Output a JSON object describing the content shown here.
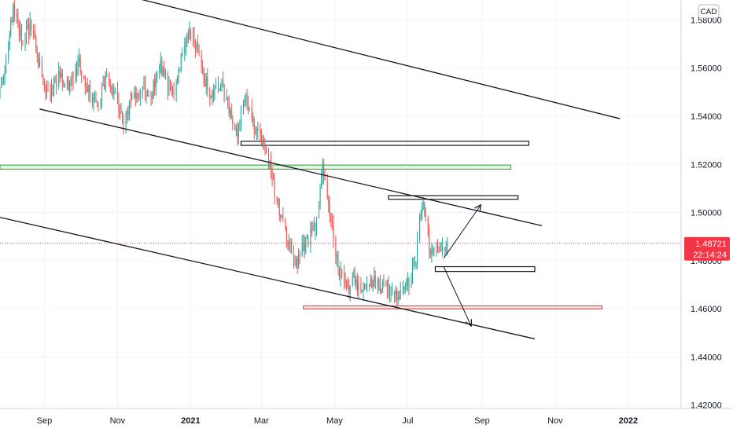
{
  "chart_data": {
    "type": "candlestick",
    "currency_label": "CAD",
    "y_ticks": [
      1.42,
      1.44,
      1.46,
      1.48,
      1.5,
      1.52,
      1.54,
      1.56,
      1.58
    ],
    "y_tick_labels": [
      "1.42000",
      "1.44000",
      "1.46000",
      "1.48000",
      "1.50000",
      "1.52000",
      "1.54000",
      "1.56000",
      "1.58000"
    ],
    "ylim": [
      1.4186,
      1.5883
    ],
    "xlim": [
      "2020-07-26",
      "2022-02-14"
    ],
    "x_ticks": [
      {
        "label": "Sep",
        "date": "2020-09-01",
        "bold": false
      },
      {
        "label": "Nov",
        "date": "2020-11-01",
        "bold": false
      },
      {
        "label": "2021",
        "date": "2021-01-01",
        "bold": true
      },
      {
        "label": "Mar",
        "date": "2021-03-01",
        "bold": false
      },
      {
        "label": "May",
        "date": "2021-05-01",
        "bold": false
      },
      {
        "label": "Jul",
        "date": "2021-07-01",
        "bold": false
      },
      {
        "label": "Sep",
        "date": "2021-09-01",
        "bold": false
      },
      {
        "label": "Nov",
        "date": "2021-11-01",
        "bold": false
      },
      {
        "label": "2022",
        "date": "2022-01-01",
        "bold": true
      }
    ],
    "current_price": 1.48721,
    "current_price_label": "1.48721",
    "countdown_label": "22:14:24",
    "price_path": [
      [
        "2020-07-26",
        1.548
      ],
      [
        "2020-08-01",
        1.562
      ],
      [
        "2020-08-07",
        1.586
      ],
      [
        "2020-08-14",
        1.572
      ],
      [
        "2020-08-22",
        1.578
      ],
      [
        "2020-08-30",
        1.558
      ],
      [
        "2020-09-06",
        1.548
      ],
      [
        "2020-09-14",
        1.558
      ],
      [
        "2020-09-22",
        1.552
      ],
      [
        "2020-10-01",
        1.562
      ],
      [
        "2020-10-08",
        1.552
      ],
      [
        "2020-10-16",
        1.545
      ],
      [
        "2020-10-24",
        1.555
      ],
      [
        "2020-11-01",
        1.548
      ],
      [
        "2020-11-07",
        1.535
      ],
      [
        "2020-11-14",
        1.548
      ],
      [
        "2020-11-22",
        1.552
      ],
      [
        "2020-11-30",
        1.548
      ],
      [
        "2020-12-07",
        1.562
      ],
      [
        "2020-12-14",
        1.552
      ],
      [
        "2020-12-20",
        1.552
      ],
      [
        "2020-12-27",
        1.568
      ],
      [
        "2021-01-03",
        1.575
      ],
      [
        "2021-01-08",
        1.565
      ],
      [
        "2021-01-14",
        1.555
      ],
      [
        "2021-01-20",
        1.548
      ],
      [
        "2021-01-27",
        1.555
      ],
      [
        "2021-02-03",
        1.542
      ],
      [
        "2021-02-09",
        1.532
      ],
      [
        "2021-02-16",
        1.548
      ],
      [
        "2021-02-23",
        1.538
      ],
      [
        "2021-03-01",
        1.532
      ],
      [
        "2021-03-06",
        1.528
      ],
      [
        "2021-03-10",
        1.518
      ],
      [
        "2021-03-14",
        1.505
      ],
      [
        "2021-03-19",
        1.498
      ],
      [
        "2021-03-25",
        1.485
      ],
      [
        "2021-03-31",
        1.478
      ],
      [
        "2021-04-06",
        1.485
      ],
      [
        "2021-04-12",
        1.49
      ],
      [
        "2021-04-18",
        1.498
      ],
      [
        "2021-04-22",
        1.518
      ],
      [
        "2021-04-27",
        1.502
      ],
      [
        "2021-05-01",
        1.49
      ],
      [
        "2021-05-06",
        1.475
      ],
      [
        "2021-05-12",
        1.468
      ],
      [
        "2021-05-18",
        1.472
      ],
      [
        "2021-05-25",
        1.468
      ],
      [
        "2021-06-01",
        1.472
      ],
      [
        "2021-06-08",
        1.47
      ],
      [
        "2021-06-15",
        1.468
      ],
      [
        "2021-06-22",
        1.465
      ],
      [
        "2021-06-28",
        1.468
      ],
      [
        "2021-07-04",
        1.472
      ],
      [
        "2021-07-09",
        1.482
      ],
      [
        "2021-07-14",
        1.505
      ],
      [
        "2021-07-17",
        1.498
      ],
      [
        "2021-07-21",
        1.48
      ],
      [
        "2021-07-25",
        1.488
      ],
      [
        "2021-07-29",
        1.482
      ],
      [
        "2021-08-03",
        1.487
      ]
    ],
    "drawings": [
      {
        "kind": "trendline",
        "name": "channel-upper-line",
        "from": [
          "2020-11-05",
          1.5905
        ],
        "to": [
          "2021-12-25",
          1.539
        ]
      },
      {
        "kind": "trendline",
        "name": "channel-middle-line",
        "from": [
          "2020-08-28",
          1.543
        ],
        "to": [
          "2021-10-21",
          1.4945
        ]
      },
      {
        "kind": "trendline",
        "name": "channel-lower-line",
        "from": [
          "2020-07-26",
          1.498
        ],
        "to": [
          "2021-10-15",
          1.4475
        ]
      },
      {
        "kind": "rect",
        "name": "resistance-zone-black",
        "x0": "2021-02-12",
        "x1": "2021-10-10",
        "y0": 1.5279,
        "y1": 1.5296,
        "stroke": "#131722",
        "fill": "none"
      },
      {
        "kind": "rect",
        "name": "green-zone",
        "x0": "2020-07-26",
        "x1": "2021-09-25",
        "y0": 1.518,
        "y1": 1.5197,
        "stroke": "#4caf50",
        "fill": "#e8f5e9"
      },
      {
        "kind": "rect",
        "name": "upper-target-zone",
        "x0": "2021-06-15",
        "x1": "2021-10-01",
        "y0": 1.5055,
        "y1": 1.507,
        "stroke": "#131722",
        "fill": "none"
      },
      {
        "kind": "rect",
        "name": "support-zone-black",
        "x0": "2021-07-24",
        "x1": "2021-10-15",
        "y0": 1.4755,
        "y1": 1.4775,
        "stroke": "#131722",
        "fill": "none"
      },
      {
        "kind": "rect",
        "name": "red-support-zone",
        "x0": "2021-04-05",
        "x1": "2021-12-10",
        "y0": 1.46,
        "y1": 1.4612,
        "stroke": "#f44336",
        "fill": "#ffebee"
      },
      {
        "kind": "arrow",
        "name": "up-arrow",
        "from": [
          "2021-07-31",
          1.481
        ],
        "to": [
          "2021-08-31",
          1.5032
        ]
      },
      {
        "kind": "arrow",
        "name": "down-arrow",
        "from": [
          "2021-07-31",
          1.4775
        ],
        "to": [
          "2021-08-23",
          1.4528
        ]
      }
    ]
  }
}
